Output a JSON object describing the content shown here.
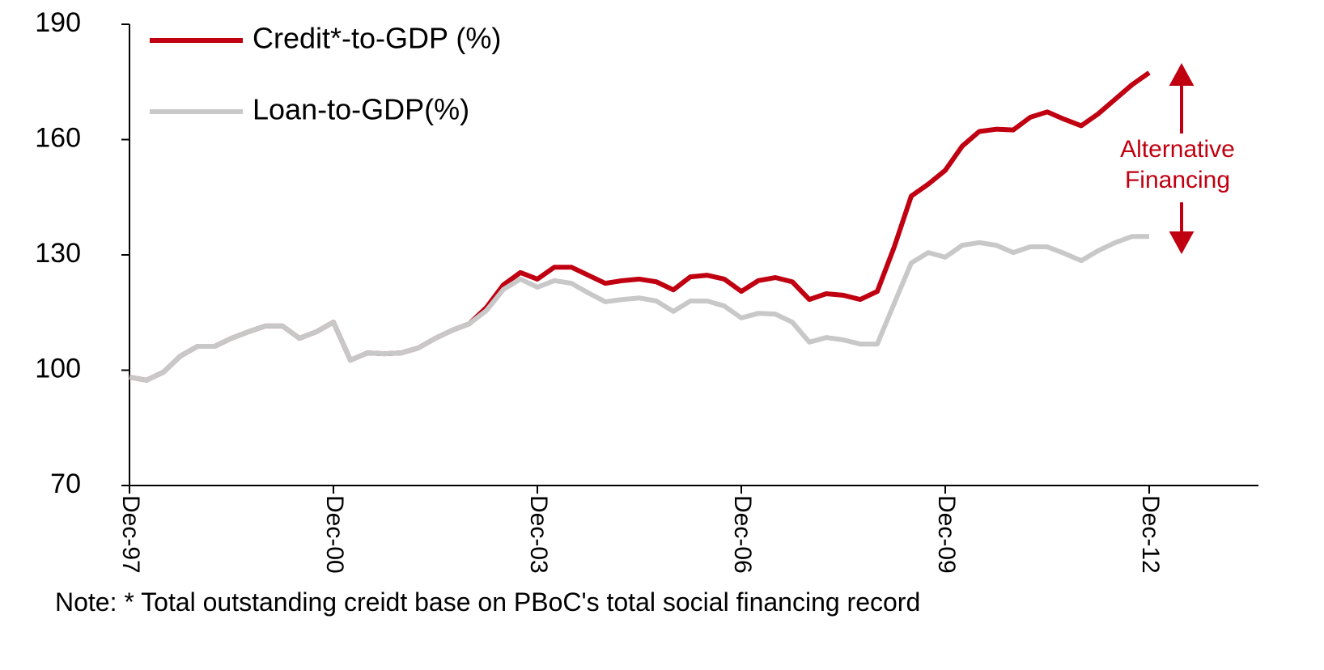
{
  "chart_data": {
    "type": "line",
    "categories": [
      "Dec-97",
      null,
      null,
      null,
      null,
      null,
      null,
      null,
      null,
      null,
      null,
      null,
      "Dec-00",
      null,
      null,
      null,
      null,
      null,
      null,
      null,
      null,
      null,
      null,
      null,
      "Dec-03",
      null,
      null,
      null,
      null,
      null,
      null,
      null,
      null,
      null,
      null,
      null,
      "Dec-06",
      null,
      null,
      null,
      null,
      null,
      null,
      null,
      null,
      null,
      null,
      null,
      "Dec-09",
      null,
      null,
      null,
      null,
      null,
      null,
      null,
      null,
      null,
      null,
      null,
      "Dec-12",
      null,
      null,
      null,
      null,
      null,
      null
    ],
    "series": [
      {
        "name": "Credit*-to-GDP (%)",
        "color": "#c00010",
        "values": [
          98.2,
          97.4,
          99.5,
          103.7,
          106.2,
          106.2,
          108.3,
          110,
          111.5,
          111.5,
          108.3,
          110,
          112.5,
          102.6,
          104.5,
          104.3,
          104.5,
          105.8,
          108.3,
          110.4,
          112.1,
          116.3,
          122.2,
          125.4,
          123.7,
          126.8,
          126.8,
          124.7,
          122.6,
          123.3,
          123.7,
          123,
          120.9,
          124.3,
          124.7,
          123.7,
          120.5,
          123.3,
          124.1,
          123,
          118.4,
          119.9,
          119.5,
          118.4,
          120.5,
          132.1,
          145.3,
          148.4,
          152,
          158.3,
          162.1,
          162.7,
          162.5,
          165.8,
          167.2,
          165.3,
          163.6,
          166.7,
          170.5,
          174.3,
          177.4,
          null,
          null,
          null,
          null,
          null,
          null
        ]
      },
      {
        "name": "Loan-to-GDP(%)",
        "color": "#c8c8c8",
        "values": [
          98.2,
          97.4,
          99.5,
          103.7,
          106.2,
          106.2,
          108.3,
          110,
          111.5,
          111.5,
          108.3,
          110,
          112.5,
          102.6,
          104.5,
          104.3,
          104.5,
          105.8,
          108.3,
          110.4,
          112.1,
          115.5,
          121,
          123.7,
          121.6,
          123.3,
          122.6,
          120.1,
          117.8,
          118.4,
          118.8,
          118,
          115.3,
          118,
          118,
          116.7,
          113.6,
          114.8,
          114.6,
          112.5,
          107.3,
          108.5,
          107.9,
          106.8,
          106.8,
          117.4,
          127.9,
          130.6,
          129.4,
          132.5,
          133.2,
          132.5,
          130.6,
          132.1,
          132.1,
          130.4,
          128.5,
          131.1,
          133.2,
          134.8,
          134.8,
          null,
          null,
          null,
          null,
          null,
          null
        ]
      }
    ],
    "ylim": [
      70,
      190
    ],
    "yticks": [
      70,
      100,
      130,
      160,
      190
    ],
    "annotation": [
      "Alternative",
      "Financing"
    ],
    "note": "Note: * Total outstanding creidt base on PBoC's total social financing record"
  }
}
